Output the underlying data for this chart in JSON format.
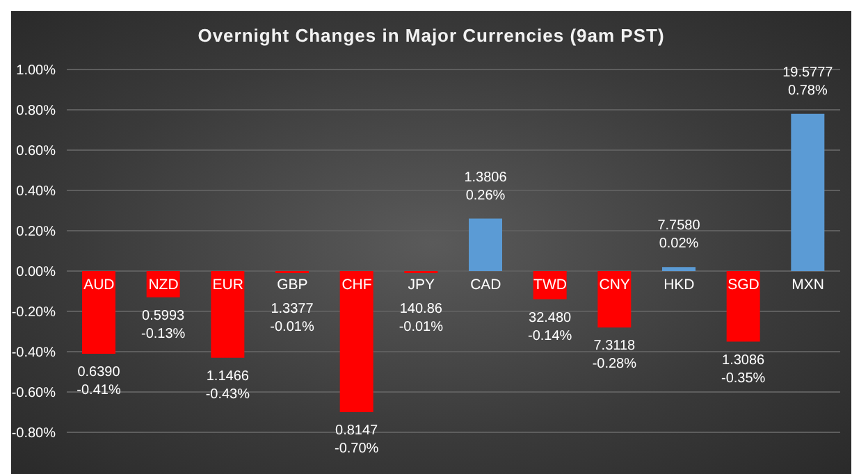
{
  "chart_data": {
    "type": "bar",
    "title": "Overnight Changes in Major Currencies (9am PST)",
    "categories": [
      "AUD",
      "NZD",
      "EUR",
      "GBP",
      "CHF",
      "JPY",
      "CAD",
      "TWD",
      "CNY",
      "HKD",
      "SGD",
      "MXN"
    ],
    "values": [
      -0.41,
      -0.13,
      -0.43,
      -0.01,
      -0.7,
      -0.01,
      0.26,
      -0.14,
      -0.28,
      0.02,
      -0.35,
      0.78
    ],
    "colors": [
      "#ff0000",
      "#ff0000",
      "#ff0000",
      "#ff0000",
      "#ff0000",
      "#ff0000",
      "#5b9bd5",
      "#ff0000",
      "#ff0000",
      "#5b9bd5",
      "#ff0000",
      "#5b9bd5"
    ],
    "value_labels": [
      "0.6390\n-0.41%",
      "0.5993\n-0.13%",
      "1.1466\n-0.43%",
      "1.3377\n-0.01%",
      "0.8147\n-0.70%",
      "140.86\n-0.01%",
      "1.3806\n0.26%",
      "32.480\n-0.14%",
      "7.3118\n-0.28%",
      "7.7580\n0.02%",
      "1.3086\n-0.35%",
      "19.5777\n0.78%"
    ],
    "ylim": [
      -0.8,
      1.0
    ],
    "yticks": [
      {
        "value": -0.8,
        "label": "-0.80%"
      },
      {
        "value": -0.6,
        "label": "-0.60%"
      },
      {
        "value": -0.4,
        "label": "-0.40%"
      },
      {
        "value": -0.2,
        "label": "-0.20%"
      },
      {
        "value": 0,
        "label": "0.00%"
      },
      {
        "value": 0.2,
        "label": "0.20%"
      },
      {
        "value": 0.4,
        "label": "0.40%"
      },
      {
        "value": 0.6,
        "label": "0.60%"
      },
      {
        "value": 0.8,
        "label": "0.80%"
      },
      {
        "value": 1.0,
        "label": "1.00%"
      }
    ],
    "grid": "y"
  }
}
